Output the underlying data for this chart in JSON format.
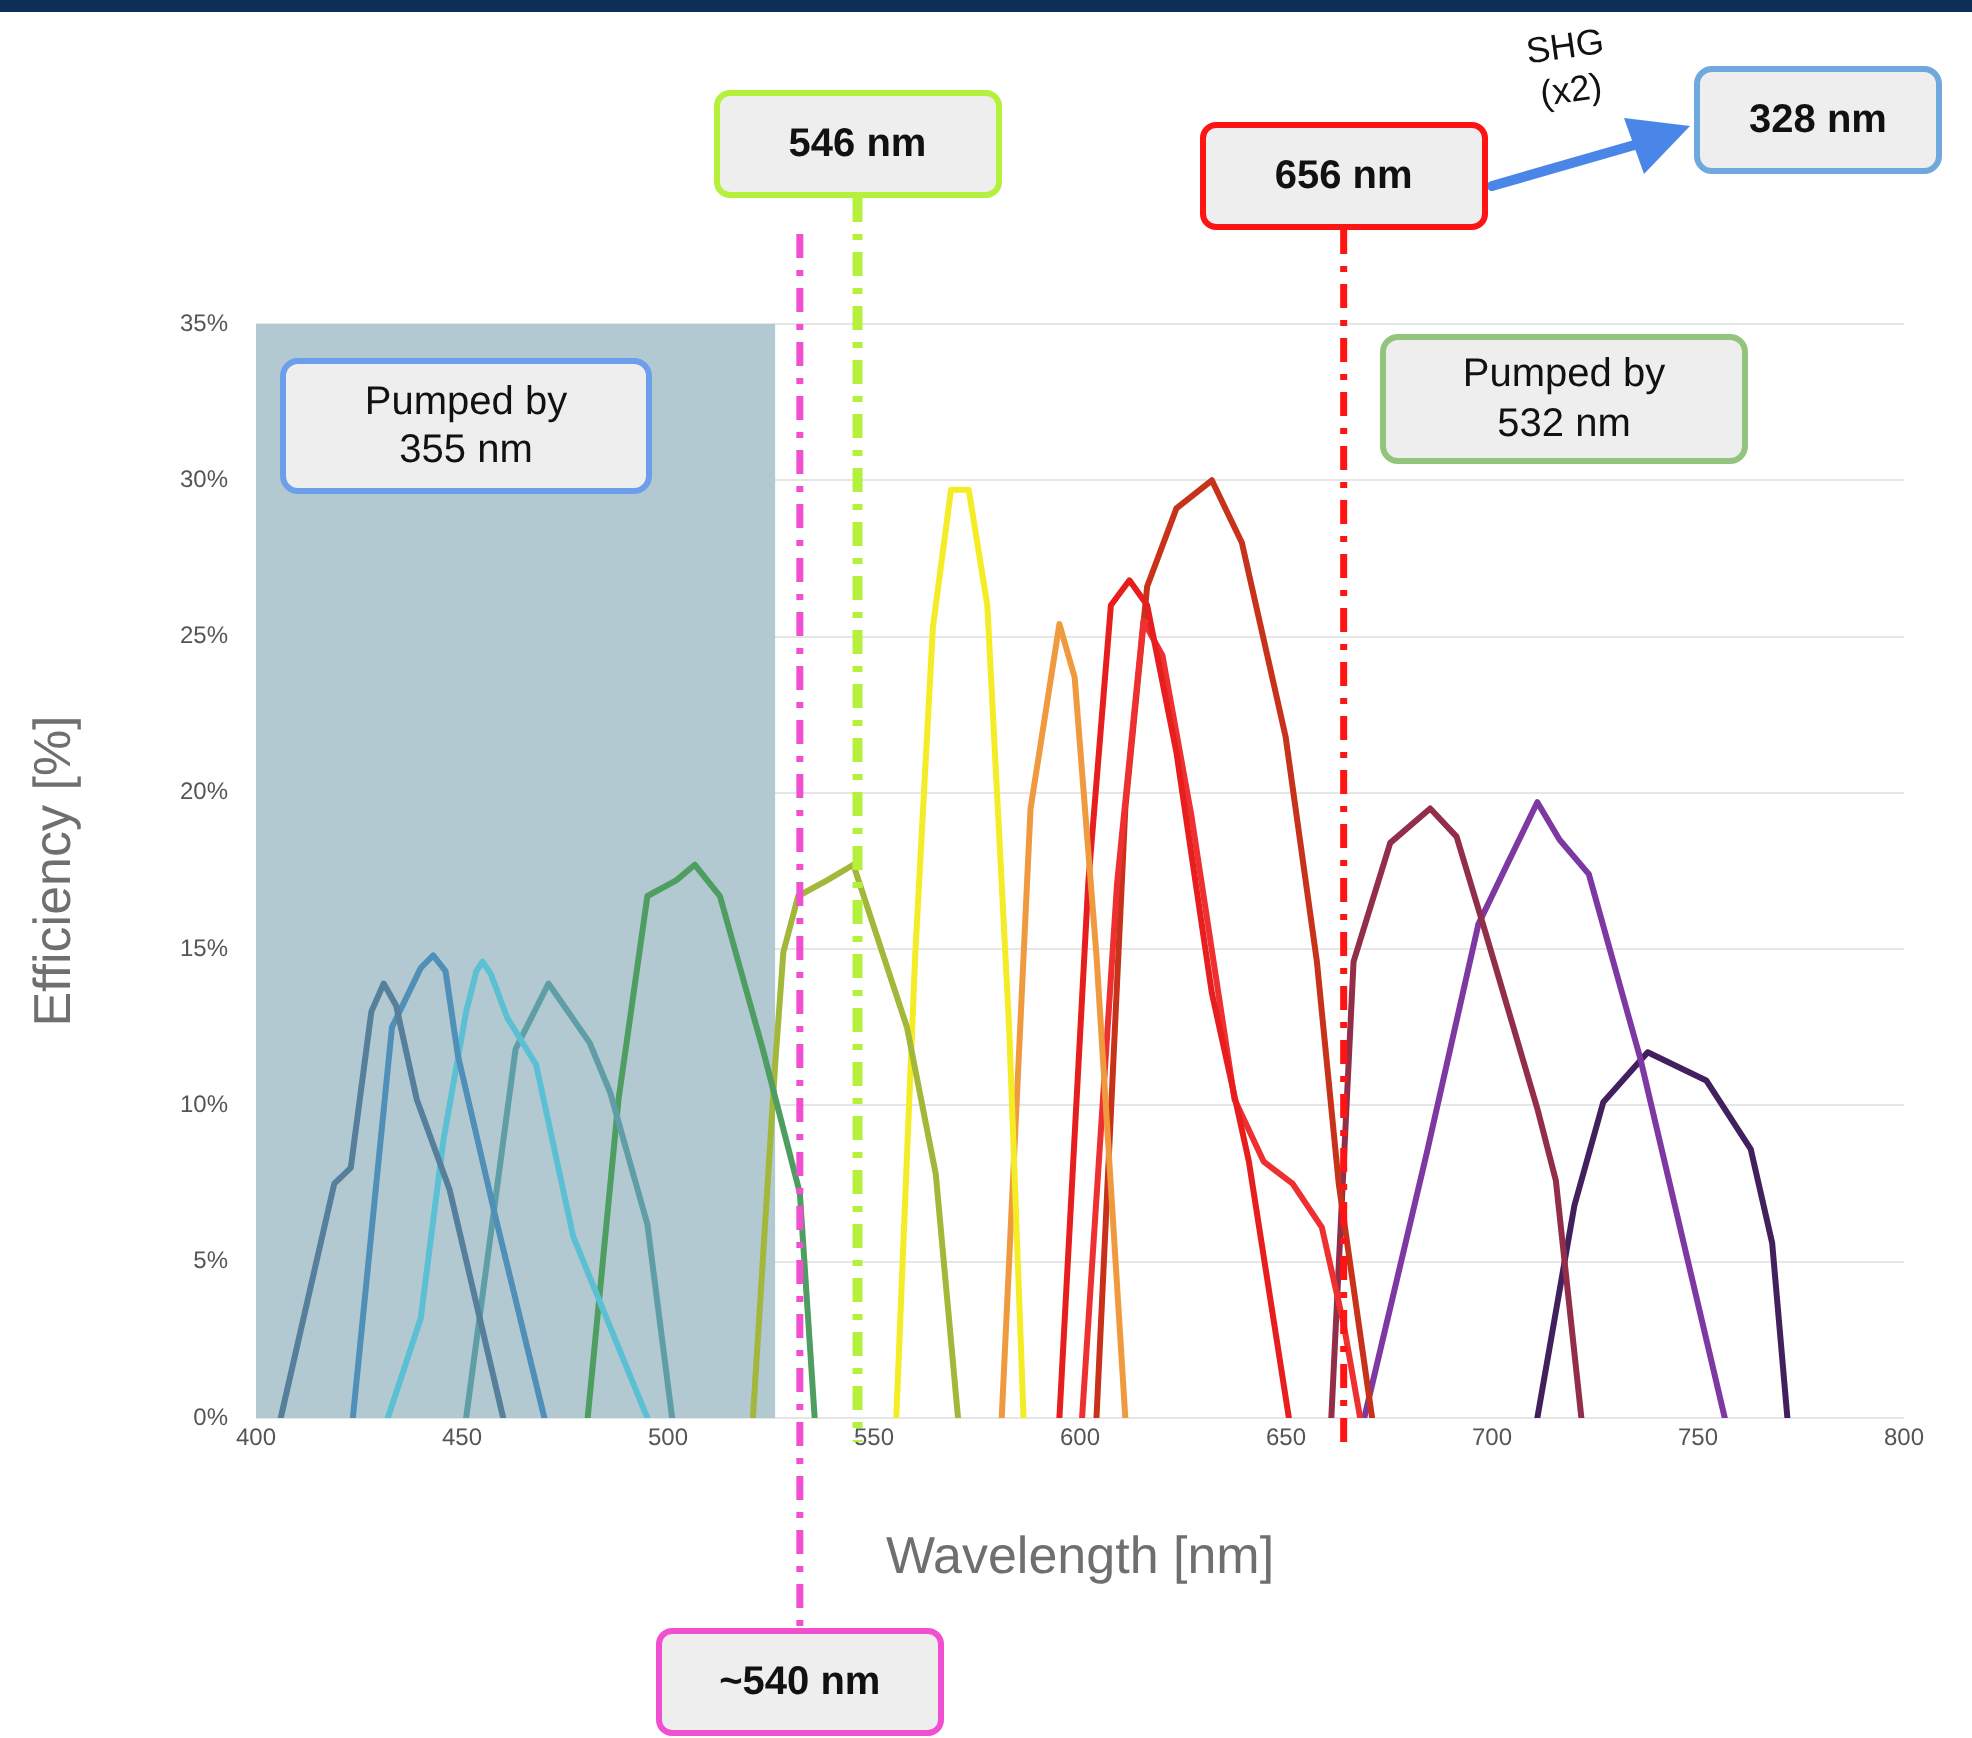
{
  "chart_data": {
    "type": "line",
    "xlabel": "Wavelength [nm]",
    "ylabel": "Efficiency [%]",
    "xlim": [
      400,
      800
    ],
    "xticks": [
      400,
      450,
      500,
      550,
      600,
      650,
      700,
      750,
      800
    ],
    "ylim": [
      0,
      35
    ],
    "yticks": [
      {
        "value": 0,
        "label": "0%"
      },
      {
        "value": 5,
        "label": "5%"
      },
      {
        "value": 10,
        "label": "10%"
      },
      {
        "value": 15,
        "label": "15%"
      },
      {
        "value": 20,
        "label": "20%"
      },
      {
        "value": 25,
        "label": "25%"
      },
      {
        "value": 30,
        "label": "30%"
      },
      {
        "value": 35,
        "label": "35%"
      }
    ],
    "grid": "y",
    "legend": false,
    "marker": "none",
    "line_style": "solid",
    "series": [
      {
        "color": "#557f9a",
        "x": [
          406,
          419,
          423,
          428,
          431,
          434,
          439,
          447,
          460
        ],
        "values": [
          0,
          7.5,
          8,
          13,
          13.9,
          13.2,
          10.2,
          7.3,
          0
        ]
      },
      {
        "color": "#4f8fb8",
        "x": [
          423.5,
          433,
          440,
          443,
          446,
          449,
          458,
          470
        ],
        "values": [
          0,
          12.5,
          14.4,
          14.8,
          14.3,
          11.6,
          6.5,
          0
        ]
      },
      {
        "color": "#5cc0d5",
        "x": [
          432,
          440,
          445.5,
          451,
          453.5,
          455,
          457,
          461,
          468,
          477,
          495
        ],
        "values": [
          0,
          3.2,
          8.9,
          13,
          14.3,
          14.6,
          14.2,
          12.8,
          11.3,
          5.8,
          0
        ]
      },
      {
        "color": "#5f9ea6",
        "x": [
          451,
          463,
          471,
          481,
          486,
          495,
          501
        ],
        "values": [
          0,
          11.8,
          13.9,
          12,
          10.4,
          6.2,
          0
        ]
      },
      {
        "color": "#4e9e62",
        "x": [
          480.5,
          488,
          495,
          502,
          506.5,
          512.6,
          523,
          532,
          535.6
        ],
        "values": [
          0,
          10.2,
          16.7,
          17.2,
          17.7,
          16.7,
          11.8,
          7.2,
          0
        ]
      },
      {
        "color": "#a3b83a",
        "x": [
          520.6,
          526,
          528,
          531.6,
          538.6,
          545,
          558,
          565,
          570.4
        ],
        "values": [
          0,
          11.3,
          14.9,
          16.7,
          17.2,
          17.7,
          12.5,
          7.8,
          0
        ]
      },
      {
        "color": "#f4ec24",
        "x": [
          555.4,
          560,
          564.3,
          568.7,
          573,
          577.5,
          582.8,
          586.3
        ],
        "values": [
          0,
          14.8,
          25.3,
          29.7,
          29.7,
          26,
          12.5,
          0
        ]
      },
      {
        "color": "#f09a40",
        "x": [
          581,
          588,
          595,
          598.7,
          604,
          611
        ],
        "values": [
          0,
          19.5,
          25.4,
          23.7,
          14.8,
          0
        ]
      },
      {
        "color": "#e81e1e",
        "x": [
          595,
          602,
          607.5,
          612,
          616.3,
          623.4,
          632,
          641,
          650.7
        ],
        "values": [
          0,
          17.1,
          26,
          26.8,
          26,
          21.3,
          13.6,
          8.2,
          0
        ]
      },
      {
        "color": "#ee3030",
        "x": [
          600.5,
          609,
          615.4,
          620,
          627,
          637.5,
          644.6,
          651.6,
          658.7,
          664,
          668
        ],
        "values": [
          0,
          17.1,
          25.5,
          24.4,
          19.3,
          10.2,
          8.2,
          7.5,
          6.1,
          3,
          0
        ]
      },
      {
        "color": "#c8321a",
        "x": [
          604,
          611,
          616.3,
          623.4,
          632,
          639.3,
          649.9,
          657.5,
          662.8,
          670.9
        ],
        "values": [
          0,
          19.5,
          26.6,
          29.1,
          30,
          28,
          21.8,
          14.6,
          7.5,
          0
        ]
      },
      {
        "color": "#922e4a",
        "x": [
          661,
          666.4,
          675.3,
          685,
          691.4,
          698.5,
          711,
          715.5,
          721.7
        ],
        "values": [
          0,
          14.6,
          18.4,
          19.5,
          18.6,
          15.5,
          9.9,
          7.6,
          0
        ]
      },
      {
        "color": "#7e38a2",
        "x": [
          669,
          684.2,
          696.7,
          704,
          711,
          716.4,
          723.5,
          736,
          756.5
        ],
        "values": [
          0,
          8.5,
          15.8,
          17.8,
          19.7,
          18.5,
          17.4,
          11.5,
          0
        ]
      },
      {
        "color": "#42205e",
        "x": [
          711,
          720,
          727,
          737.8,
          752,
          762.8,
          768,
          771.7
        ],
        "values": [
          0,
          6.8,
          10.1,
          11.7,
          10.8,
          8.6,
          5.6,
          0
        ]
      }
    ],
    "bands": [
      {
        "axis": "x",
        "from": 400,
        "to": 526,
        "label": "Pumped by 355 nm",
        "color": "#b3c9d1"
      }
    ],
    "ref_lines": [
      {
        "axis": "x",
        "value": 532,
        "label": "~540 nm",
        "color": "#f050d0",
        "line_style": "dashed"
      },
      {
        "axis": "x",
        "value": 546,
        "label": "546 nm",
        "color": "#b4f03c",
        "line_style": "dashed"
      },
      {
        "axis": "x",
        "value": 664,
        "label": "656 nm",
        "color": "#ff1414",
        "line_style": "dashed"
      }
    ],
    "annotations": [
      "Pumped by 532 nm",
      "SHG (x2)",
      "328 nm"
    ]
  }
}
